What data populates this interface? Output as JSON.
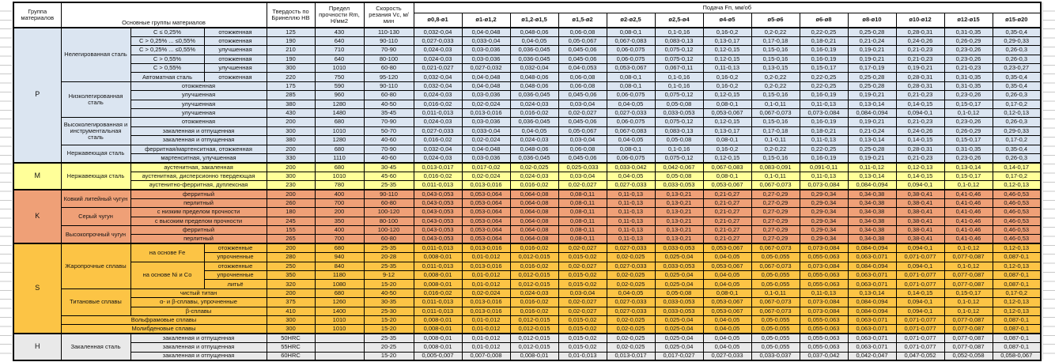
{
  "header": {
    "col_group": "Группа материалов",
    "col_main": "Основные группы материалов",
    "col_hardness": "Твердость по Бринеллю HB",
    "col_strength": "Предел прочности Rm, Н/мм2",
    "col_speed": "Скорость резания Vc, м/мин",
    "feed_title": "Подача Fп, мм/об",
    "feed_cols": [
      "ø0,8-ø1",
      "ø1-ø1,2",
      "ø1,2-ø1,5",
      "ø1,5-ø2",
      "ø2-ø2,5",
      "ø2,5-ø4",
      "ø4-ø5",
      "ø5-ø6",
      "ø6-ø8",
      "ø8-ø10",
      "ø10-ø12",
      "ø12-ø15",
      "ø15-ø20"
    ]
  },
  "group_colors": {
    "p": "#dbe5f1",
    "m": "#ffff99",
    "k": "#efa077",
    "s": "#fcc445",
    "h": "#e9e9e9"
  },
  "feed_patterns": {
    "A": [
      "0,032-0,04",
      "0,04-0,048",
      "0,048-0,06",
      "0,06-0,08",
      "0,08-0,1",
      "0,1-0,16",
      "0,16-0,2",
      "0,2-0,22",
      "0,22-0,25",
      "0,25-0,28",
      "0,28-0,31",
      "0,31-0,35",
      "0,35-0,4"
    ],
    "B": [
      "0,027-0,033",
      "0,033-0,04",
      "0,04-0,05",
      "0,05-0,067",
      "0,067-0,083",
      "0,083-0,13",
      "0,13-0,17",
      "0,17-0,18",
      "0,18-0,21",
      "0,21-0,24",
      "0,24-0,26",
      "0,26-0,29",
      "0,29-0,33"
    ],
    "C": [
      "0,024-0,03",
      "0,03-0,036",
      "0,036-0,045",
      "0,045-0,06",
      "0,06-0,075",
      "0,075-0,12",
      "0,12-0,15",
      "0,15-0,16",
      "0,16-0,19",
      "0,19-0,21",
      "0,21-0,23",
      "0,23-0,26",
      "0,26-0,3"
    ],
    "D": [
      "0,021-0,027",
      "0,027-0,032",
      "0,032-0,04",
      "0,04-0,053",
      "0,053-0,067",
      "0,067-0,11",
      "0,11-0,13",
      "0,13-0,15",
      "0,15-0,17",
      "0,17-0,19",
      "0,19-0,21",
      "0,21-0,23",
      "0,23-0,27"
    ],
    "E": [
      "0,016-0,02",
      "0,02-0,024",
      "0,024-0,03",
      "0,03-0,04",
      "0,04-0,05",
      "0,05-0,08",
      "0,08-0,1",
      "0,1-0,11",
      "0,11-0,13",
      "0,13-0,14",
      "0,14-0,15",
      "0,15-0,17",
      "0,17-0,2"
    ],
    "F": [
      "0,011-0,013",
      "0,013-0,016",
      "0,016-0,02",
      "0,02-0,027",
      "0,027-0,033",
      "0,033-0,053",
      "0,053-0,067",
      "0,067-0,073",
      "0,073-0,084",
      "0,084-0,094",
      "0,094-0,1",
      "0,1-0,12",
      "0,12-0,13"
    ],
    "G": [
      "0,013-0,017",
      "0,017-0,02",
      "0,02-0,025",
      "0,025-0,033",
      "0,033-0,042",
      "0,042-0,067",
      "0,067-0,083",
      "0,083-0,091",
      "0,091-0,11",
      "0,11-0,12",
      "0,12-0,13",
      "0,13-0,14",
      "0,14-0,17"
    ],
    "K": [
      "0,043-0,053",
      "0,053-0,064",
      "0,064-0,08",
      "0,08-0,11",
      "0,11-0,13",
      "0,13-0,21",
      "0,21-0,27",
      "0,27-0,29",
      "0,29-0,34",
      "0,34-0,38",
      "0,38-0,41",
      "0,41-0,46",
      "0,46-0,53"
    ],
    "L": [
      "0,008-0,01",
      "0,01-0,012",
      "0,012-0,015",
      "0,015-0,02",
      "0,02-0,025",
      "0,025-0,04",
      "0,04-0,05",
      "0,05-0,055",
      "0,055-0,063",
      "0,063-0,071",
      "0,071-0,077",
      "0,077-0,087",
      "0,087-0,1"
    ],
    "N": [
      "0,005-0,007",
      "0,007-0,008",
      "0,008-0,01",
      "0,01-0,013",
      "0,013-0,017",
      "0,017-0,027",
      "0,027-0,033",
      "0,033-0,037",
      "0,037-0,042",
      "0,042-0,047",
      "0,047-0,052",
      "0,052-0,058",
      "0,058-0,067"
    ]
  },
  "rows": [
    {
      "grp": "p",
      "gs": true,
      "letter": {
        "t": "P",
        "rs": 15
      },
      "cells": [
        {
          "t": "Нелегированная сталь",
          "rs": 6
        },
        {
          "t": "C ≤ 0,25%"
        },
        {
          "t": "отожженная"
        }
      ],
      "hb": "125",
      "rm": "430",
      "vc": "110-130",
      "fp": "A"
    },
    {
      "grp": "p",
      "cells": [
        {
          "t": "C > 0,25% ... ≤0,55%"
        },
        {
          "t": "отожженная"
        }
      ],
      "hb": "190",
      "rm": "640",
      "vc": "90-110",
      "fp": "B"
    },
    {
      "grp": "p",
      "cells": [
        {
          "t": "C > 0,25% ... ≤0,55%"
        },
        {
          "t": "улучшенная"
        }
      ],
      "hb": "210",
      "rm": "710",
      "vc": "70-90",
      "fp": "C"
    },
    {
      "grp": "p",
      "cells": [
        {
          "t": "C > 0,55%"
        },
        {
          "t": "отожженная"
        }
      ],
      "hb": "190",
      "rm": "640",
      "vc": "80-100",
      "fp": "C"
    },
    {
      "grp": "p",
      "cells": [
        {
          "t": "C > 0,55%"
        },
        {
          "t": "улучшенная"
        }
      ],
      "hb": "300",
      "rm": "1010",
      "vc": "60-80",
      "fp": "D"
    },
    {
      "grp": "p",
      "cells": [
        {
          "t": "Автоматная сталь"
        },
        {
          "t": "отожженная"
        }
      ],
      "hb": "220",
      "rm": "750",
      "vc": "95-120",
      "fp": "A"
    },
    {
      "grp": "p",
      "cells": [
        {
          "t": "Низколегированная сталь",
          "rs": 4
        },
        {
          "t": "отожженная",
          "cs": 2
        }
      ],
      "hb": "175",
      "rm": "590",
      "vc": "90-110",
      "fp": "A"
    },
    {
      "grp": "p",
      "cells": [
        {
          "t": "улучшенная",
          "cs": 2
        }
      ],
      "hb": "285",
      "rm": "960",
      "vc": "60-80",
      "fp": "C"
    },
    {
      "grp": "p",
      "cells": [
        {
          "t": "улучшенная",
          "cs": 2
        }
      ],
      "hb": "380",
      "rm": "1280",
      "vc": "40-50",
      "fp": "E"
    },
    {
      "grp": "p",
      "cells": [
        {
          "t": "улучшенная",
          "cs": 2
        }
      ],
      "hb": "430",
      "rm": "1480",
      "vc": "35-45",
      "fp": "F"
    },
    {
      "grp": "p",
      "cells": [
        {
          "t": "Высоколегированная и инструментальная сталь",
          "rs": 3
        },
        {
          "t": "отожженная",
          "cs": 2
        }
      ],
      "hb": "200",
      "rm": "680",
      "vc": "70-90",
      "fp": "C"
    },
    {
      "grp": "p",
      "cells": [
        {
          "t": "закаленная и отпущенная",
          "cs": 2
        }
      ],
      "hb": "300",
      "rm": "1010",
      "vc": "50-70",
      "fp": "B"
    },
    {
      "grp": "p",
      "cells": [
        {
          "t": "закаленная и отпущенная",
          "cs": 2
        }
      ],
      "hb": "380",
      "rm": "1280",
      "vc": "40-60",
      "fp": "E"
    },
    {
      "grp": "p",
      "cells": [
        {
          "t": "Нержавеющая сталь",
          "rs": 2
        },
        {
          "t": "ферритная/мартенситная, отожженная",
          "cs": 2
        }
      ],
      "hb": "200",
      "rm": "680",
      "vc": "70-90",
      "fp": "A"
    },
    {
      "grp": "p",
      "cells": [
        {
          "t": "мартенситная, улучшенная",
          "cs": 2
        }
      ],
      "hb": "330",
      "rm": "1110",
      "vc": "40-60",
      "fp": "C"
    },
    {
      "grp": "m",
      "gs": true,
      "letter": {
        "t": "M",
        "rs": 3
      },
      "cells": [
        {
          "t": "Нержавеющая сталь",
          "rs": 3
        },
        {
          "t": "аустенитная, закаленная",
          "cs": 2
        }
      ],
      "hb": "200",
      "rm": "680",
      "vc": "30-45",
      "fp": "G"
    },
    {
      "grp": "m",
      "cells": [
        {
          "t": "аустенитная, дисперсионно твердеющая",
          "cs": 2
        }
      ],
      "hb": "300",
      "rm": "1010",
      "vc": "45-60",
      "fp": "E"
    },
    {
      "grp": "m",
      "cells": [
        {
          "t": "аустенитно-ферритная, дуплексная",
          "cs": 2
        }
      ],
      "hb": "230",
      "rm": "780",
      "vc": "25-35",
      "fp": "F"
    },
    {
      "grp": "k",
      "gs": true,
      "letter": {
        "t": "K",
        "rs": 6
      },
      "cells": [
        {
          "t": "Ковкий литейный чугун",
          "rs": 2
        },
        {
          "t": "ферритный",
          "cs": 2
        }
      ],
      "hb": "200",
      "rm": "400",
      "vc": "90-110",
      "fp": "K"
    },
    {
      "grp": "k",
      "cells": [
        {
          "t": "перлитный",
          "cs": 2
        }
      ],
      "hb": "260",
      "rm": "700",
      "vc": "60-80",
      "fp": "K"
    },
    {
      "grp": "k",
      "cells": [
        {
          "t": "Серый чугун",
          "rs": 2
        },
        {
          "t": "с низким пределом прочности",
          "cs": 2
        }
      ],
      "hb": "180",
      "rm": "200",
      "vc": "100-120",
      "fp": "K"
    },
    {
      "grp": "k",
      "cells": [
        {
          "t": "с высоким пределом прочности",
          "cs": 2
        }
      ],
      "hb": "245",
      "rm": "350",
      "vc": "80-100",
      "fp": "K"
    },
    {
      "grp": "k",
      "cells": [
        {
          "t": "Высокопрочный чугун",
          "rs": 2
        },
        {
          "t": "ферритный",
          "cs": 2
        }
      ],
      "hb": "155",
      "rm": "400",
      "vc": "100-120",
      "fp": "K"
    },
    {
      "grp": "k",
      "cells": [
        {
          "t": "перлитный",
          "cs": 2
        }
      ],
      "hb": "265",
      "rm": "700",
      "vc": "60-80",
      "fp": "K"
    },
    {
      "grp": "s",
      "gs": true,
      "letter": {
        "t": "S",
        "rs": 10
      },
      "cells": [
        {
          "t": "Жаропрочные сплавы",
          "rs": 5
        },
        {
          "t": "на основе Fe",
          "rs": 2
        },
        {
          "t": "отожженные"
        }
      ],
      "hb": "200",
      "rm": "680",
      "vc": "25-35",
      "fp": "F"
    },
    {
      "grp": "s",
      "cells": [
        {
          "t": "упрочненные"
        }
      ],
      "hb": "280",
      "rm": "940",
      "vc": "20-28",
      "fp": "L"
    },
    {
      "grp": "s",
      "cells": [
        {
          "t": "на основе Ni и Co",
          "rs": 3
        },
        {
          "t": "отожженные"
        }
      ],
      "hb": "250",
      "rm": "840",
      "vc": "25-35",
      "fp": "F"
    },
    {
      "grp": "s",
      "cells": [
        {
          "t": "упрочненные"
        }
      ],
      "hb": "350",
      "rm": "1180",
      "vc": "9-12",
      "fp": "L"
    },
    {
      "grp": "s",
      "cells": [
        {
          "t": "литьё"
        }
      ],
      "hb": "320",
      "rm": "1080",
      "vc": "15-20",
      "fp": "L"
    },
    {
      "grp": "s",
      "cells": [
        {
          "t": "Титановые сплавы",
          "rs": 3
        },
        {
          "t": "чистый титан",
          "cs": 2
        }
      ],
      "hb": "200",
      "rm": "680",
      "vc": "40-50",
      "fp": "E"
    },
    {
      "grp": "s",
      "cells": [
        {
          "t": "α- и β-сплавы, упрочненные",
          "cs": 2
        }
      ],
      "hb": "375",
      "rm": "1260",
      "vc": "30-35",
      "fp": "F"
    },
    {
      "grp": "s",
      "cells": [
        {
          "t": "β-сплавы",
          "cs": 2
        }
      ],
      "hb": "410",
      "rm": "1400",
      "vc": "25-30",
      "fp": "F"
    },
    {
      "grp": "s",
      "cells": [
        {
          "t": "Вольфрамовые сплавы",
          "cs": 3
        }
      ],
      "hb": "300",
      "rm": "1010",
      "vc": "15-20",
      "fp": "L"
    },
    {
      "grp": "s",
      "cells": [
        {
          "t": "Молибденовые сплавы",
          "cs": 3
        }
      ],
      "hb": "300",
      "rm": "1010",
      "vc": "15-20",
      "fp": "L"
    },
    {
      "grp": "h",
      "gs": true,
      "letter": {
        "t": "H",
        "rs": 3
      },
      "cells": [
        {
          "t": "Закаленная сталь",
          "rs": 3
        },
        {
          "t": "закаленная и отпущенная",
          "cs": 2
        }
      ],
      "hb": "50HRC",
      "rm": "",
      "vc": "25-35",
      "fp": "L"
    },
    {
      "grp": "h",
      "cells": [
        {
          "t": "закаленная и отпущенная",
          "cs": 2
        }
      ],
      "hb": "55HRC",
      "rm": "",
      "vc": "20-25",
      "fp": "L"
    },
    {
      "grp": "h",
      "cells": [
        {
          "t": "закаленная и отпущенная",
          "cs": 2
        }
      ],
      "hb": "60HRC",
      "rm": "",
      "vc": "15-20",
      "fp": "N"
    }
  ]
}
